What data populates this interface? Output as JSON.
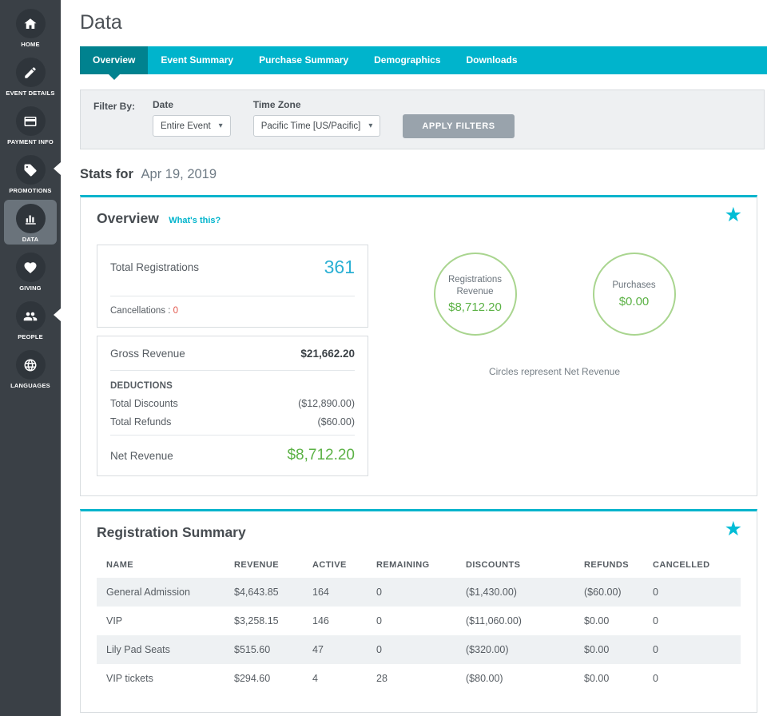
{
  "colors": {
    "teal": "#00b4cc",
    "teal_dark": "#00828f",
    "accent_blue": "#2bb0d4",
    "green": "#5cb246",
    "green_border": "#a9d58f",
    "star_cyan": "#00bdd6",
    "red": "#e2574c",
    "sidebar_bg": "#3a4046",
    "sidebar_icon_bg": "#2f353b",
    "sidebar_active": "#6a737b",
    "button_gray": "#99a3ac"
  },
  "icons": {
    "favorite_star": "★",
    "caret_down": "▾"
  },
  "sidebar": {
    "items": [
      {
        "label": "HOME",
        "icon": "home",
        "active": false
      },
      {
        "label": "EVENT DETAILS",
        "icon": "pencil",
        "active": false
      },
      {
        "label": "PAYMENT INFO",
        "icon": "credit-card",
        "active": false
      },
      {
        "label": "PROMOTIONS",
        "icon": "tag",
        "active": false
      },
      {
        "label": "DATA",
        "icon": "bar-chart",
        "active": true
      },
      {
        "label": "GIVING",
        "icon": "heart",
        "active": false
      },
      {
        "label": "PEOPLE",
        "icon": "people",
        "active": false
      },
      {
        "label": "LANGUAGES",
        "icon": "globe",
        "active": false
      }
    ]
  },
  "header": {
    "title": "Data"
  },
  "tabs": [
    {
      "label": "Overview",
      "active": true
    },
    {
      "label": "Event Summary",
      "active": false
    },
    {
      "label": "Purchase Summary",
      "active": false
    },
    {
      "label": "Demographics",
      "active": false
    },
    {
      "label": "Downloads",
      "active": false
    }
  ],
  "filter": {
    "label": "Filter By:",
    "date_label": "Date",
    "date_value": "Entire Event",
    "timezone_label": "Time Zone",
    "timezone_value": "Pacific Time [US/Pacific]",
    "apply_label": "APPLY FILTERS"
  },
  "stats": {
    "prefix": "Stats for",
    "date": "Apr 19, 2019"
  },
  "overview_card": {
    "title": "Overview",
    "whats_this": "What's this?",
    "total_registrations_label": "Total Registrations",
    "total_registrations_value": "361",
    "cancellations_label": "Cancellations :",
    "cancellations_value": "0",
    "gross_revenue_label": "Gross Revenue",
    "gross_revenue_value": "$21,662.20",
    "deductions_label": "DEDUCTIONS",
    "total_discounts_label": "Total Discounts",
    "total_discounts_value": "($12,890.00)",
    "total_refunds_label": "Total Refunds",
    "total_refunds_value": "($60.00)",
    "net_revenue_label": "Net Revenue",
    "net_revenue_value": "$8,712.20",
    "circles": [
      {
        "label": "Registrations Revenue",
        "value": "$8,712.20"
      },
      {
        "label": "Purchases",
        "value": "$0.00"
      }
    ],
    "circles_caption": "Circles represent Net Revenue"
  },
  "registration_summary": {
    "title": "Registration Summary",
    "columns": [
      "NAME",
      "REVENUE",
      "ACTIVE",
      "REMAINING",
      "DISCOUNTS",
      "REFUNDS",
      "CANCELLED"
    ],
    "rows": [
      [
        "General Admission",
        "$4,643.85",
        "164",
        "0",
        "($1,430.00)",
        "($60.00)",
        "0"
      ],
      [
        "VIP",
        "$3,258.15",
        "146",
        "0",
        "($11,060.00)",
        "$0.00",
        "0"
      ],
      [
        "Lily Pad Seats",
        "$515.60",
        "47",
        "0",
        "($320.00)",
        "$0.00",
        "0"
      ],
      [
        "VIP tickets",
        "$294.60",
        "4",
        "28",
        "($80.00)",
        "$0.00",
        "0"
      ]
    ]
  }
}
